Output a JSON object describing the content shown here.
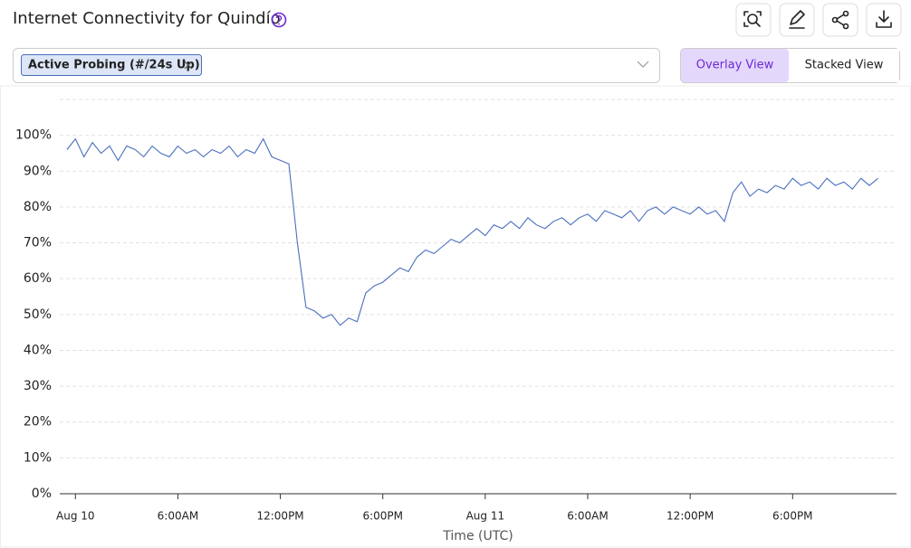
{
  "header": {
    "title": "Internet Connectivity for Quindío"
  },
  "view_toggle": {
    "options": [
      "Overlay View",
      "Stacked View"
    ],
    "active": 0
  },
  "chart_data": {
    "type": "line",
    "xlabel": "Time (UTC)",
    "x": [
      "Aug 9 11:30PM",
      "Aug 10 12:00AM",
      "Aug 10 12:30AM",
      "Aug 10 1:00AM",
      "Aug 10 1:30AM",
      "Aug 10 2:00AM",
      "Aug 10 2:30AM",
      "Aug 10 3:00AM",
      "Aug 10 3:30AM",
      "Aug 10 4:00AM",
      "Aug 10 4:30AM",
      "Aug 10 5:00AM",
      "Aug 10 5:30AM",
      "Aug 10 6:00AM",
      "Aug 10 6:30AM",
      "Aug 10 7:00AM",
      "Aug 10 7:30AM",
      "Aug 10 8:00AM",
      "Aug 10 8:30AM",
      "Aug 10 9:00AM",
      "Aug 10 9:30AM",
      "Aug 10 10:00AM",
      "Aug 10 10:30AM",
      "Aug 10 11:00AM",
      "Aug 10 11:30AM",
      "Aug 10 12:00PM",
      "Aug 10 12:30PM",
      "Aug 10 1:00PM",
      "Aug 10 1:30PM",
      "Aug 10 2:00PM",
      "Aug 10 2:30PM",
      "Aug 10 3:00PM",
      "Aug 10 3:30PM",
      "Aug 10 4:00PM",
      "Aug 10 4:30PM",
      "Aug 10 5:00PM",
      "Aug 10 5:30PM",
      "Aug 10 6:00PM",
      "Aug 10 6:30PM",
      "Aug 10 7:00PM",
      "Aug 10 7:30PM",
      "Aug 10 8:00PM",
      "Aug 10 8:30PM",
      "Aug 10 9:00PM",
      "Aug 10 9:30PM",
      "Aug 10 10:00PM",
      "Aug 10 10:30PM",
      "Aug 10 11:00PM",
      "Aug 10 11:30PM",
      "Aug 11 12:00AM",
      "Aug 11 12:30AM",
      "Aug 11 1:00AM",
      "Aug 11 1:30AM",
      "Aug 11 2:00AM",
      "Aug 11 2:30AM",
      "Aug 11 3:00AM",
      "Aug 11 3:30AM",
      "Aug 11 4:00AM",
      "Aug 11 4:30AM",
      "Aug 11 5:00AM",
      "Aug 11 5:30AM",
      "Aug 11 6:00AM",
      "Aug 11 6:30AM",
      "Aug 11 7:00AM",
      "Aug 11 7:30AM",
      "Aug 11 8:00AM",
      "Aug 11 8:30AM",
      "Aug 11 9:00AM",
      "Aug 11 9:30AM",
      "Aug 11 10:00AM",
      "Aug 11 10:30AM",
      "Aug 11 11:00AM",
      "Aug 11 11:30AM",
      "Aug 11 12:00PM",
      "Aug 11 12:30PM",
      "Aug 11 1:00PM",
      "Aug 11 1:30PM",
      "Aug 11 2:00PM",
      "Aug 11 2:30PM",
      "Aug 11 3:00PM",
      "Aug 11 3:30PM",
      "Aug 11 4:00PM",
      "Aug 11 4:30PM",
      "Aug 11 5:00PM",
      "Aug 11 5:30PM",
      "Aug 11 6:00PM",
      "Aug 11 6:30PM",
      "Aug 11 7:00PM",
      "Aug 11 7:30PM",
      "Aug 11 8:00PM",
      "Aug 11 8:30PM",
      "Aug 11 9:00PM",
      "Aug 11 9:30PM",
      "Aug 11 10:00PM",
      "Aug 11 10:30PM",
      "Aug 11 11:00PM"
    ],
    "series": [
      {
        "name": "Active Probing (#/24s Up)",
        "color": "#4a6fbf",
        "values": [
          96,
          99,
          94,
          98,
          95,
          97,
          93,
          97,
          96,
          94,
          97,
          95,
          94,
          97,
          95,
          96,
          94,
          96,
          95,
          97,
          94,
          96,
          95,
          99,
          94,
          93,
          92,
          70,
          52,
          51,
          49,
          50,
          47,
          49,
          48,
          56,
          58,
          59,
          61,
          63,
          62,
          66,
          68,
          67,
          69,
          71,
          70,
          72,
          74,
          72,
          75,
          74,
          76,
          74,
          77,
          75,
          74,
          76,
          77,
          75,
          77,
          78,
          76,
          79,
          78,
          77,
          79,
          76,
          79,
          80,
          78,
          80,
          79,
          78,
          80,
          78,
          79,
          76,
          84,
          87,
          83,
          85,
          84,
          86,
          85,
          88,
          86,
          87,
          85,
          88,
          86,
          87,
          85,
          88,
          86,
          88
        ]
      }
    ],
    "xlim": [
      "Aug 9 11:05PM",
      "Aug 12 12:05AM"
    ],
    "xticks": [
      {
        "value": "Aug 10 12:00AM",
        "label": "Aug 10"
      },
      {
        "value": "Aug 10 6:00AM",
        "label": "6:00AM"
      },
      {
        "value": "Aug 10 12:00PM",
        "label": "12:00PM"
      },
      {
        "value": "Aug 10 6:00PM",
        "label": "6:00PM"
      },
      {
        "value": "Aug 11 12:00AM",
        "label": "Aug 11"
      },
      {
        "value": "Aug 11 6:00AM",
        "label": "6:00AM"
      },
      {
        "value": "Aug 11 12:00PM",
        "label": "12:00PM"
      },
      {
        "value": "Aug 11 6:00PM",
        "label": "6:00PM"
      }
    ],
    "ylim": [
      0,
      110
    ],
    "yticks": [
      {
        "value": 0,
        "label": "0%"
      },
      {
        "value": 10,
        "label": "10%"
      },
      {
        "value": 20,
        "label": "20%"
      },
      {
        "value": 30,
        "label": "30%"
      },
      {
        "value": 40,
        "label": "40%"
      },
      {
        "value": 50,
        "label": "50%"
      },
      {
        "value": 60,
        "label": "60%"
      },
      {
        "value": 70,
        "label": "70%"
      },
      {
        "value": 80,
        "label": "80%"
      },
      {
        "value": 90,
        "label": "90%"
      },
      {
        "value": 100,
        "label": "100%"
      }
    ],
    "grid": true
  }
}
